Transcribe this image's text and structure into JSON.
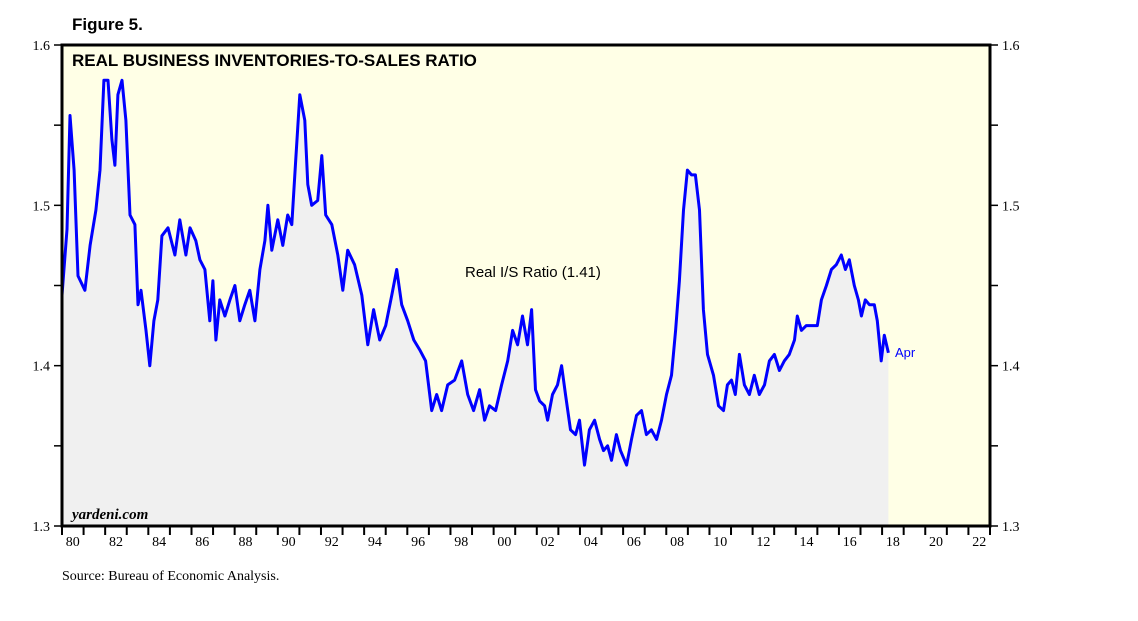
{
  "figure_label": "Figure 5.",
  "source": "Source: Bureau of Economic Analysis.",
  "watermark": "yardeni.com",
  "colors": {
    "line": "#0000ff",
    "background": "#ffffe6",
    "fill": "#f0f0f0"
  },
  "chart_data": {
    "type": "line",
    "title": "REAL BUSINESS INVENTORIES-TO-SALES RATIO",
    "xlabel": "",
    "ylabel": "",
    "xlim": [
      1980,
      2023
    ],
    "ylim": [
      1.3,
      1.6
    ],
    "grid": false,
    "y_ticks": [
      "1.6",
      "1.5",
      "1.4",
      "1.3"
    ],
    "x_tick_labels": [
      "80",
      "82",
      "84",
      "86",
      "88",
      "90",
      "92",
      "94",
      "96",
      "98",
      "00",
      "02",
      "04",
      "06",
      "08",
      "10",
      "12",
      "14",
      "16",
      "18",
      "20",
      "22"
    ],
    "annotations": {
      "series_label": "Real I/S Ratio (1.41)",
      "end_label": "Apr"
    },
    "series": [
      {
        "name": "Real I/S Ratio",
        "x": [
          1980.0,
          1980.23,
          1980.37,
          1980.56,
          1980.74,
          1981.06,
          1981.3,
          1981.57,
          1981.76,
          1981.94,
          1982.13,
          1982.31,
          1982.45,
          1982.59,
          1982.78,
          1982.96,
          1983.15,
          1983.38,
          1983.52,
          1983.66,
          1983.89,
          1984.07,
          1984.26,
          1984.44,
          1984.63,
          1984.91,
          1985.23,
          1985.46,
          1985.74,
          1985.93,
          1986.2,
          1986.39,
          1986.62,
          1986.85,
          1986.99,
          1987.13,
          1987.31,
          1987.55,
          1987.78,
          1988.01,
          1988.24,
          1988.47,
          1988.7,
          1988.94,
          1989.17,
          1989.4,
          1989.54,
          1989.72,
          1990.0,
          1990.23,
          1990.46,
          1990.65,
          1990.83,
          1991.02,
          1991.25,
          1991.39,
          1991.57,
          1991.85,
          1992.04,
          1992.22,
          1992.5,
          1992.78,
          1993.01,
          1993.24,
          1993.56,
          1993.89,
          1994.17,
          1994.44,
          1994.72,
          1995.0,
          1995.28,
          1995.51,
          1995.74,
          1996.02,
          1996.3,
          1996.57,
          1996.85,
          1997.13,
          1997.36,
          1997.59,
          1997.87,
          1998.19,
          1998.52,
          1998.8,
          1999.07,
          1999.35,
          1999.58,
          1999.81,
          2000.09,
          2000.37,
          2000.65,
          2000.88,
          2001.11,
          2001.34,
          2001.57,
          2001.76,
          2001.94,
          2002.13,
          2002.36,
          2002.5,
          2002.73,
          2002.96,
          2003.15,
          2003.33,
          2003.56,
          2003.8,
          2003.98,
          2004.21,
          2004.44,
          2004.68,
          2004.91,
          2005.09,
          2005.28,
          2005.46,
          2005.69,
          2005.88,
          2006.16,
          2006.39,
          2006.62,
          2006.85,
          2007.08,
          2007.31,
          2007.55,
          2007.78,
          2008.01,
          2008.24,
          2008.43,
          2008.61,
          2008.8,
          2008.98,
          2009.17,
          2009.35,
          2009.54,
          2009.72,
          2009.91,
          2010.19,
          2010.42,
          2010.65,
          2010.83,
          2011.02,
          2011.2,
          2011.39,
          2011.62,
          2011.85,
          2012.08,
          2012.31,
          2012.55,
          2012.78,
          2013.01,
          2013.24,
          2013.47,
          2013.7,
          2013.94,
          2014.07,
          2014.26,
          2014.49,
          2014.72,
          2015.0,
          2015.19,
          2015.42,
          2015.65,
          2015.88,
          2016.11,
          2016.3,
          2016.48,
          2016.71,
          2016.9,
          2017.04,
          2017.22,
          2017.41,
          2017.64,
          2017.78,
          2017.96,
          2018.1,
          2018.29
        ],
        "y": [
          1.444,
          1.485,
          1.556,
          1.522,
          1.456,
          1.447,
          1.475,
          1.497,
          1.522,
          1.578,
          1.578,
          1.541,
          1.525,
          1.569,
          1.578,
          1.553,
          1.494,
          1.488,
          1.438,
          1.447,
          1.422,
          1.4,
          1.428,
          1.441,
          1.481,
          1.486,
          1.469,
          1.491,
          1.469,
          1.486,
          1.478,
          1.466,
          1.46,
          1.428,
          1.453,
          1.416,
          1.441,
          1.431,
          1.441,
          1.45,
          1.428,
          1.438,
          1.447,
          1.428,
          1.46,
          1.478,
          1.5,
          1.472,
          1.491,
          1.475,
          1.494,
          1.488,
          1.528,
          1.569,
          1.553,
          1.513,
          1.5,
          1.503,
          1.531,
          1.494,
          1.488,
          1.469,
          1.447,
          1.472,
          1.463,
          1.444,
          1.413,
          1.435,
          1.416,
          1.425,
          1.444,
          1.46,
          1.438,
          1.428,
          1.416,
          1.41,
          1.403,
          1.372,
          1.382,
          1.372,
          1.388,
          1.391,
          1.403,
          1.382,
          1.372,
          1.385,
          1.366,
          1.375,
          1.372,
          1.388,
          1.403,
          1.422,
          1.413,
          1.431,
          1.413,
          1.435,
          1.385,
          1.378,
          1.375,
          1.366,
          1.382,
          1.388,
          1.4,
          1.382,
          1.36,
          1.357,
          1.366,
          1.338,
          1.36,
          1.366,
          1.354,
          1.347,
          1.35,
          1.341,
          1.357,
          1.347,
          1.338,
          1.354,
          1.369,
          1.372,
          1.357,
          1.36,
          1.354,
          1.366,
          1.382,
          1.394,
          1.422,
          1.453,
          1.497,
          1.522,
          1.519,
          1.519,
          1.497,
          1.435,
          1.407,
          1.394,
          1.375,
          1.372,
          1.388,
          1.391,
          1.382,
          1.407,
          1.388,
          1.382,
          1.394,
          1.382,
          1.388,
          1.403,
          1.407,
          1.397,
          1.403,
          1.407,
          1.416,
          1.431,
          1.422,
          1.425,
          1.425,
          1.425,
          1.441,
          1.45,
          1.46,
          1.463,
          1.469,
          1.46,
          1.466,
          1.45,
          1.441,
          1.431,
          1.441,
          1.438,
          1.438,
          1.428,
          1.403,
          1.419,
          1.408
        ]
      }
    ]
  }
}
